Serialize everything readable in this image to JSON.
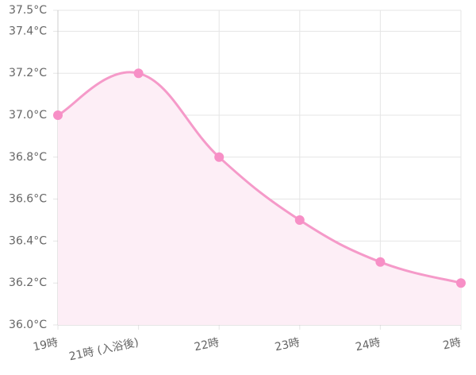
{
  "chart_data": {
    "type": "line",
    "categories": [
      "19時",
      "21時 (入浴後)",
      "22時",
      "23時",
      "24時",
      "2時"
    ],
    "values": [
      37.0,
      37.2,
      36.8,
      36.5,
      36.3,
      36.2
    ],
    "color": "#f59ac9",
    "point_color": "#f78fc6",
    "fill_color": "#fdeef6",
    "ylim": [
      36.0,
      37.5
    ],
    "yticks": [
      {
        "value": 36.0,
        "label": "36.0°C"
      },
      {
        "value": 36.2,
        "label": "36.2°C"
      },
      {
        "value": 36.4,
        "label": "36.4°C"
      },
      {
        "value": 36.6,
        "label": "36.6°C"
      },
      {
        "value": 36.8,
        "label": "36.8°C"
      },
      {
        "value": 37.0,
        "label": "37.0°C"
      },
      {
        "value": 37.2,
        "label": "37.2°C"
      },
      {
        "value": 37.4,
        "label": "37.4°C"
      },
      {
        "value": 37.5,
        "label": "37.5°C"
      }
    ],
    "grid": true
  }
}
